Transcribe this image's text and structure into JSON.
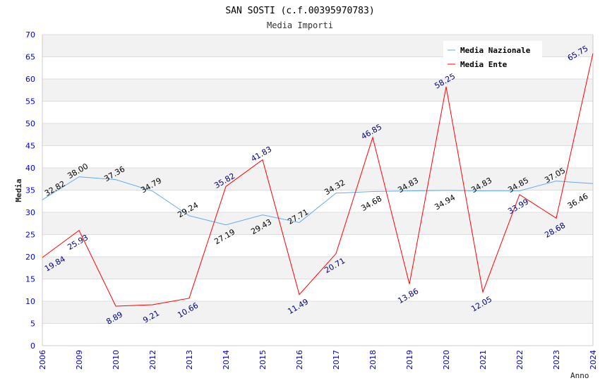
{
  "chart_data": {
    "type": "line",
    "title": "SAN SOSTI (c.f.00395970783)",
    "subtitle": "Media Importi",
    "xlabel": "Anno",
    "ylabel": "Media",
    "ylim": [
      0,
      70
    ],
    "yticks": [
      0,
      5,
      10,
      15,
      20,
      25,
      30,
      35,
      40,
      45,
      50,
      55,
      60,
      65,
      70
    ],
    "categories": [
      "2006",
      "2009",
      "2010",
      "2012",
      "2013",
      "2014",
      "2015",
      "2016",
      "2017",
      "2018",
      "2019",
      "2020",
      "2021",
      "2022",
      "2023",
      "2024"
    ],
    "series": [
      {
        "name": "Media Nazionale",
        "color": "#66aaee",
        "label_color": "#000000",
        "values": [
          32.82,
          38.0,
          37.36,
          34.79,
          29.24,
          27.19,
          29.43,
          27.71,
          34.32,
          34.68,
          34.83,
          34.94,
          34.83,
          34.85,
          37.05,
          36.46
        ]
      },
      {
        "name": "Media Ente",
        "color": "#ff0000",
        "label_color": "#000080",
        "values": [
          19.84,
          25.93,
          8.89,
          9.21,
          10.66,
          35.82,
          41.83,
          11.49,
          20.71,
          46.85,
          13.86,
          58.25,
          12.05,
          33.99,
          28.68,
          65.75
        ]
      }
    ],
    "legend": "top-right",
    "grid": true
  }
}
